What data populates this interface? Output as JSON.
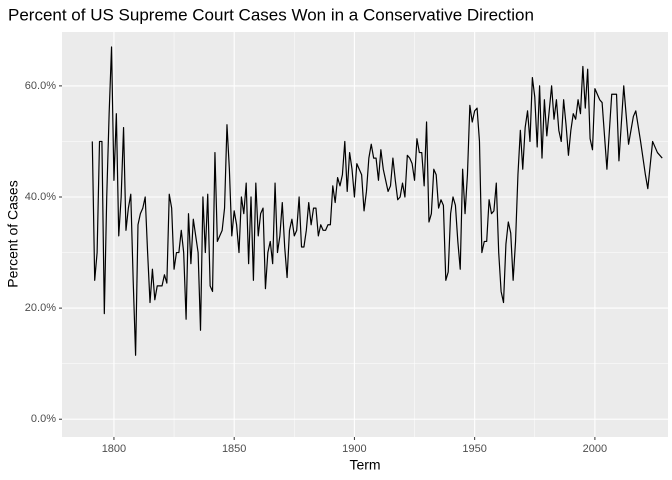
{
  "chart_data": {
    "type": "line",
    "title": "Percent of US Supreme Court Cases Won in a Conservative Direction",
    "x_label": "Term",
    "y_label": "Percent of Cases",
    "x": [
      1791,
      1792,
      1793,
      1794,
      1795,
      1796,
      1797,
      1798,
      1799,
      1800,
      1801,
      1802,
      1803,
      1804,
      1805,
      1806,
      1807,
      1808,
      1809,
      1810,
      1811,
      1812,
      1813,
      1814,
      1815,
      1816,
      1817,
      1818,
      1819,
      1820,
      1821,
      1822,
      1823,
      1824,
      1825,
      1826,
      1827,
      1828,
      1829,
      1830,
      1831,
      1832,
      1833,
      1834,
      1835,
      1836,
      1837,
      1838,
      1839,
      1840,
      1841,
      1842,
      1843,
      1844,
      1845,
      1846,
      1847,
      1848,
      1849,
      1850,
      1851,
      1852,
      1853,
      1854,
      1855,
      1856,
      1857,
      1858,
      1859,
      1860,
      1861,
      1862,
      1863,
      1864,
      1865,
      1866,
      1867,
      1868,
      1869,
      1870,
      1871,
      1872,
      1873,
      1874,
      1875,
      1876,
      1877,
      1878,
      1879,
      1880,
      1881,
      1882,
      1883,
      1884,
      1885,
      1886,
      1887,
      1888,
      1889,
      1890,
      1891,
      1892,
      1893,
      1894,
      1895,
      1896,
      1897,
      1898,
      1899,
      1900,
      1901,
      1902,
      1903,
      1904,
      1905,
      1906,
      1907,
      1908,
      1909,
      1910,
      1911,
      1912,
      1913,
      1914,
      1915,
      1916,
      1917,
      1918,
      1919,
      1920,
      1921,
      1922,
      1923,
      1924,
      1925,
      1926,
      1927,
      1928,
      1929,
      1930,
      1931,
      1932,
      1933,
      1934,
      1935,
      1936,
      1937,
      1938,
      1939,
      1940,
      1941,
      1942,
      1943,
      1944,
      1945,
      1946,
      1947,
      1948,
      1949,
      1950,
      1951,
      1952,
      1953,
      1954,
      1955,
      1956,
      1957,
      1958,
      1959,
      1960,
      1961,
      1962,
      1963,
      1964,
      1965,
      1966,
      1967,
      1968,
      1969,
      1970,
      1971,
      1972,
      1973,
      1974,
      1975,
      1976,
      1977,
      1978,
      1979,
      1980,
      1981,
      1982,
      1983,
      1984,
      1985,
      1986,
      1987,
      1988,
      1989,
      1990,
      1991,
      1992,
      1993,
      1994,
      1995,
      1996,
      1997,
      1998,
      1999,
      2000,
      2002,
      2003,
      2005,
      2007,
      2009,
      2010,
      2012,
      2014,
      2016,
      2017,
      2019,
      2021,
      2022,
      2024,
      2026,
      2028
    ],
    "values": [
      50,
      25,
      30,
      50,
      50,
      19,
      40,
      55,
      67,
      43,
      55,
      33,
      40,
      52.5,
      34,
      38,
      40.5,
      25,
      11.5,
      35,
      37,
      38,
      40,
      30,
      21,
      27,
      21.5,
      24,
      24,
      24,
      26,
      24.5,
      40.5,
      38,
      27,
      30,
      30,
      34,
      30,
      18,
      37,
      28,
      36,
      33,
      30,
      16,
      40,
      30,
      40.5,
      24,
      23,
      48,
      32,
      33,
      34,
      38,
      53,
      45,
      33,
      37.5,
      35,
      30,
      40,
      37,
      42.5,
      28,
      40,
      25,
      42.5,
      33,
      37,
      38,
      23.5,
      30,
      32,
      28,
      42.5,
      30,
      33,
      39,
      31,
      25.5,
      34,
      36,
      33,
      34,
      40,
      31,
      31,
      34,
      39,
      35,
      38,
      38,
      33,
      35,
      34,
      34,
      35,
      35,
      42,
      39,
      43.5,
      42,
      44,
      50,
      41,
      48,
      45,
      40,
      46,
      45,
      44,
      37.5,
      41,
      47,
      49.5,
      47,
      47,
      43,
      48.5,
      45,
      43,
      41,
      42,
      47,
      43,
      39.5,
      40,
      42.5,
      40,
      47.5,
      47,
      46,
      43,
      50.5,
      48,
      48,
      42,
      53.5,
      35.5,
      37,
      45,
      44,
      38,
      39.5,
      38.5,
      25,
      26.5,
      37,
      40,
      38.5,
      32,
      27,
      45,
      37,
      44,
      56.5,
      53.5,
      55.5,
      56,
      50,
      30,
      32,
      32,
      39.5,
      37,
      37.5,
      42.5,
      30,
      23,
      21,
      31.5,
      35.5,
      33.5,
      25,
      32,
      44,
      52,
      45,
      52.5,
      55.5,
      50,
      61.5,
      58,
      49,
      60,
      47,
      57.5,
      51,
      55.5,
      60,
      54,
      57.5,
      52,
      50,
      57.5,
      53,
      47.5,
      52,
      55,
      54,
      57.5,
      55,
      63.5,
      56,
      63,
      50.5,
      48.5,
      59.5,
      57.5,
      57,
      45,
      58.5,
      58.5,
      46.5,
      60,
      49.5,
      54.5,
      55.5,
      50,
      44,
      41.5,
      50,
      48,
      47
    ],
    "color": "#000000",
    "xlim": [
      1778.4,
      2030.4
    ],
    "xticks": [
      1800,
      1850,
      1900,
      1950,
      2000
    ],
    "ylim": [
      -3.2,
      69.7
    ],
    "yticks": [
      {
        "value": 0,
        "label": "0.0%"
      },
      {
        "value": 20,
        "label": "20.0%"
      },
      {
        "value": 40,
        "label": "40.0%"
      },
      {
        "value": 60,
        "label": "60.0%"
      }
    ],
    "grid": true
  }
}
